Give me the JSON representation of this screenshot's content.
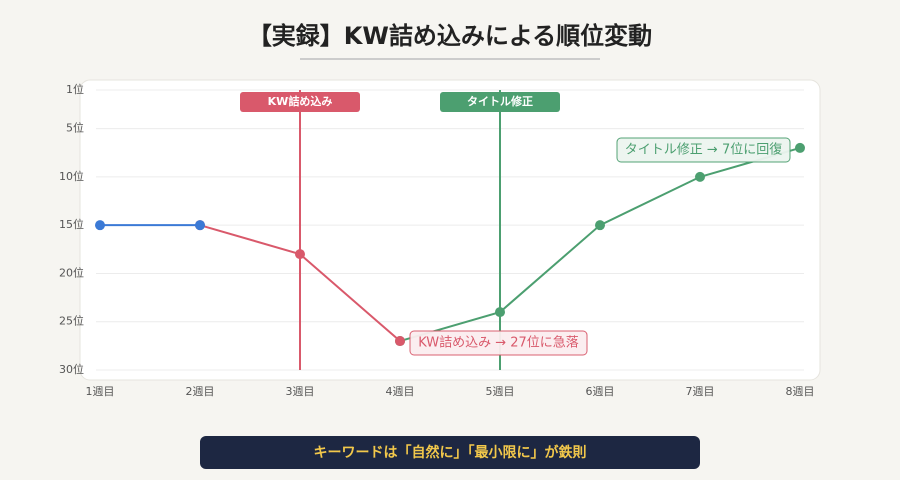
{
  "chart_data": {
    "type": "line",
    "title": "【実録】KW詰め込みによる順位変動",
    "categories": [
      "1週目",
      "2週目",
      "3週目",
      "4週目",
      "5週目",
      "6週目",
      "7週目",
      "8週目"
    ],
    "series": [
      {
        "color": "#4c9f70",
        "values": [
          null,
          null,
          null,
          27,
          24,
          15,
          10,
          7
        ]
      },
      {
        "color": "#d9596b",
        "values": [
          null,
          15,
          18,
          27,
          null,
          null,
          null,
          null
        ]
      },
      {
        "color": "#3b7ad6",
        "values": [
          15,
          15,
          null,
          null,
          null,
          null,
          null,
          null
        ]
      }
    ],
    "ylim": [
      30,
      1
    ],
    "yticks": [
      {
        "value": 1,
        "label": "1位"
      },
      {
        "value": 5,
        "label": "5位"
      },
      {
        "value": 10,
        "label": "10位"
      },
      {
        "value": 15,
        "label": "15位"
      },
      {
        "value": 20,
        "label": "20位"
      },
      {
        "value": 25,
        "label": "25位"
      },
      {
        "value": 30,
        "label": "30位"
      }
    ],
    "grid": true,
    "events": [
      {
        "at": "3週目",
        "label": "KW詰め込み",
        "color": "#d9596b"
      },
      {
        "at": "5週目",
        "label": "タイトル修正",
        "color": "#4c9f70"
      }
    ],
    "annotations": [
      {
        "text": "KW詰め込み → 27位に急落",
        "color": "#d9596b"
      },
      {
        "text": "タイトル修正 → 7位に回復",
        "color": "#4c9f70"
      }
    ]
  },
  "footer_note": "キーワードは「自然に」「最小限に」が鉄則"
}
